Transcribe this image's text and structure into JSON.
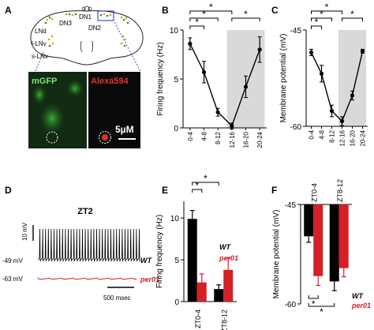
{
  "panels": {
    "A": {
      "letter": "A",
      "brain_labels": {
        "dn1": "DN1",
        "dn3": "DN3",
        "dn2": "DN2",
        "lnd": "LNd",
        "l_ln": "l-LNv",
        "s_ln": "s-LNv"
      },
      "micro_left_label": "mGFP",
      "micro_right_label": "Alexa594",
      "scale_label": "5µM"
    },
    "B": {
      "letter": "B"
    },
    "C": {
      "letter": "C"
    },
    "D": {
      "letter": "D",
      "title": "ZT2",
      "scale_v": "10 mV",
      "scale_t": "500 msec",
      "wt_level": "-49 mV",
      "per_level": "-63 mV",
      "wt_label": "WT",
      "per_label": "per01"
    },
    "E": {
      "letter": "E",
      "legend_wt": "WT",
      "legend_per": "per01"
    },
    "F": {
      "letter": "F",
      "legend_wt": "WT",
      "legend_per": "per01"
    }
  },
  "chart_data": [
    {
      "id": "B",
      "type": "line",
      "xlabel": "",
      "ylabel": "Firing frequency (Hz)",
      "categories": [
        "0-4",
        "4-8",
        "8-12",
        "12-16",
        "16-20",
        "20-24"
      ],
      "values": [
        8.6,
        5.7,
        1.6,
        0.2,
        4.2,
        8.0
      ],
      "errors": [
        0.6,
        1.1,
        0.4,
        0.3,
        1.1,
        1.3
      ],
      "ylim": [
        0,
        10
      ],
      "yticks": [
        0,
        5,
        10
      ],
      "shaded_range": [
        "12-16",
        "20-24"
      ],
      "significance": [
        "*",
        "*",
        "*",
        "*"
      ]
    },
    {
      "id": "C",
      "type": "line",
      "xlabel": "",
      "ylabel": "Membrane potential (mV)",
      "categories": [
        "0-4",
        "4-8",
        "8-12",
        "12-16",
        "16-20",
        "20-24"
      ],
      "values": [
        -48.5,
        -51.8,
        -57.6,
        -59.2,
        -55.2,
        -48.3
      ],
      "errors": [
        0.5,
        1.3,
        0.9,
        0.7,
        0.7,
        0.3
      ],
      "ylim": [
        -60,
        -45
      ],
      "yticks": [
        -60,
        -45
      ],
      "shaded_range": [
        "12-16",
        "20-24"
      ],
      "significance": [
        "*",
        "*",
        "*",
        "*"
      ]
    },
    {
      "id": "E",
      "type": "bar",
      "xlabel": "",
      "ylabel": "Firing frequency (Hz)",
      "categories": [
        "ZT0-4",
        "ZT8-12"
      ],
      "series": [
        {
          "name": "WT",
          "values": [
            9.9,
            1.5
          ],
          "errors": [
            1.0,
            0.5
          ],
          "color": "#000000"
        },
        {
          "name": "per01",
          "values": [
            2.3,
            3.8
          ],
          "errors": [
            1.0,
            1.4
          ],
          "color": "#d42027"
        }
      ],
      "ylim": [
        0,
        12
      ],
      "yticks": [
        0,
        5,
        10
      ],
      "significance": [
        "*",
        "*"
      ]
    },
    {
      "id": "F",
      "type": "bar",
      "xlabel": "",
      "ylabel": "Membrane potential (mV)",
      "categories": [
        "ZT0-4",
        "ZT8-12"
      ],
      "series": [
        {
          "name": "WT",
          "values": [
            -49.8,
            -56.6
          ],
          "errors": [
            0.9,
            1.4
          ],
          "color": "#000000"
        },
        {
          "name": "per01",
          "values": [
            -55.8,
            -54.6
          ],
          "errors": [
            1.4,
            1.3
          ],
          "color": "#d42027"
        }
      ],
      "ylim": [
        -60,
        -45
      ],
      "yticks": [
        -60,
        -45
      ],
      "significance": [
        "*",
        "*"
      ]
    }
  ]
}
